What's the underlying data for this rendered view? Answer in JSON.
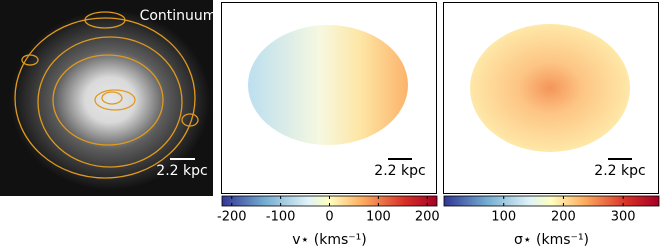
{
  "panels": [
    {
      "label": "Continuum",
      "scale_bar": "2.2 kpc"
    },
    {
      "scale_bar": "2.2 kpc"
    },
    {
      "scale_bar": "2.2 kpc"
    }
  ],
  "colorbars": [
    {
      "label": "v⋆ (kms⁻¹)",
      "xlim": [
        -220,
        220
      ],
      "xticks": [
        -200,
        -100,
        0,
        100,
        200
      ]
    },
    {
      "label": "σ⋆ (kms⁻¹)",
      "xlim": [
        0,
        360
      ],
      "xticks": [
        100,
        200,
        300
      ]
    }
  ]
}
